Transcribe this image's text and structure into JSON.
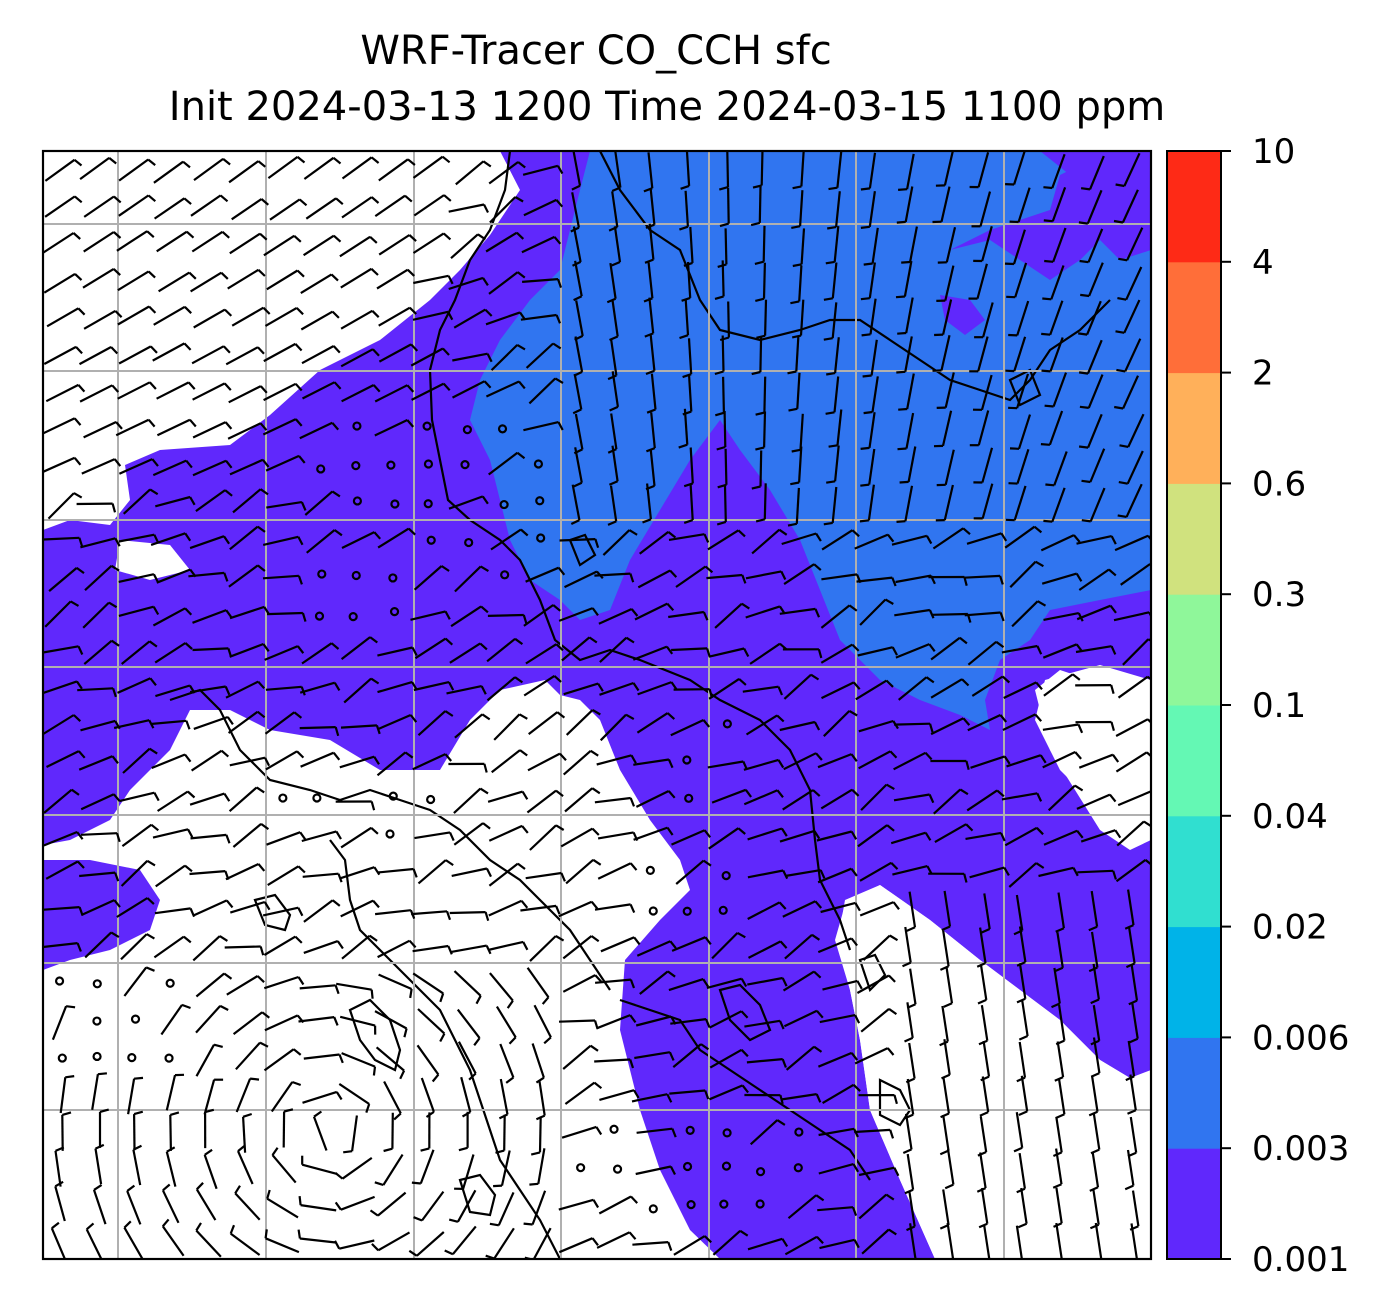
{
  "title": {
    "line1": "WRF-Tracer CO_CCH sfc",
    "line2": "Init 2024-03-13 1200 Time 2024-03-15 1100 ppm"
  },
  "colorbar": {
    "levels": [
      "0.001",
      "0.003",
      "0.006",
      "0.02",
      "0.04",
      "0.1",
      "0.3",
      "0.6",
      "2",
      "4",
      "10"
    ],
    "colors": [
      "#6028fc",
      "#3075f0",
      "#00b3e8",
      "#30dfd0",
      "#64f8b4",
      "#8ff79a",
      "#d0e27e",
      "#ffb05a",
      "#ff6e39",
      "#fe2a16"
    ]
  },
  "legend_colors": {
    "band_0001_0003": "#6028fc",
    "band_0003_0006": "#3075f0",
    "background": "#ffffff",
    "coastline": "#000000",
    "gridline": "#b0b0b0",
    "barb": "#000000"
  },
  "map": {
    "features": [
      "filled-contours",
      "wind-barbs",
      "coastlines",
      "gridlines",
      "calm-circles"
    ]
  }
}
